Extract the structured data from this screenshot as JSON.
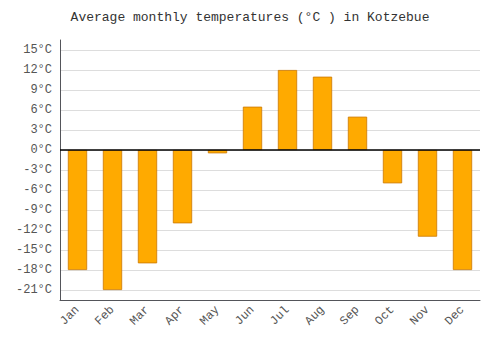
{
  "chart_data": {
    "type": "bar",
    "title": "Average monthly temperatures (°C ) in Kotzebue",
    "categories": [
      "Jan",
      "Feb",
      "Mar",
      "Apr",
      "May",
      "Jun",
      "Jul",
      "Aug",
      "Sep",
      "Oct",
      "Nov",
      "Dec"
    ],
    "values": [
      -18,
      -21,
      -17,
      -11,
      -0.5,
      6.5,
      12,
      11,
      5,
      -5,
      -13,
      -18
    ],
    "color": "#FFAA00",
    "ylim": [
      -22.5,
      16.5
    ],
    "yticks": [
      {
        "value": -21,
        "label": "-21°C"
      },
      {
        "value": -18,
        "label": "-18°C"
      },
      {
        "value": -15,
        "label": "-15°C"
      },
      {
        "value": -12,
        "label": "-12°C"
      },
      {
        "value": -9,
        "label": "-9°C"
      },
      {
        "value": -6,
        "label": "-6°C"
      },
      {
        "value": -3,
        "label": "-3°C"
      },
      {
        "value": 0,
        "label": "0°C"
      },
      {
        "value": 3,
        "label": "3°C"
      },
      {
        "value": 6,
        "label": "6°C"
      },
      {
        "value": 9,
        "label": "9°C"
      },
      {
        "value": 12,
        "label": "12°C"
      },
      {
        "value": 15,
        "label": "15°C"
      }
    ],
    "grid": true
  }
}
